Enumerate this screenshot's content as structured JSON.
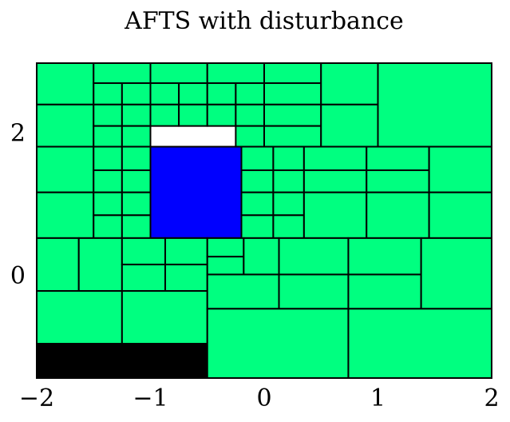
{
  "chart_data": {
    "type": "partition",
    "title": "AFTS with disturbance",
    "xlim": [
      -2,
      2
    ],
    "ylim": [
      -1.41,
      3
    ],
    "xticks": [
      {
        "value": -2,
        "label": "−2"
      },
      {
        "value": -1,
        "label": "−1"
      },
      0,
      1,
      2
    ],
    "yticks": [
      0,
      2
    ],
    "cells": [
      {
        "x": [
          -2,
          -1.5
        ],
        "y": [
          2.42,
          3
        ],
        "color": "#00ff80"
      },
      {
        "x": [
          -2,
          -1.5
        ],
        "y": [
          1.83,
          2.42
        ],
        "color": "#00ff80"
      },
      {
        "x": [
          -1.5,
          -1
        ],
        "y": [
          2.72,
          3
        ],
        "color": "#00ff80"
      },
      {
        "x": [
          -1,
          -0.5
        ],
        "y": [
          2.72,
          3
        ],
        "color": "#00ff80"
      },
      {
        "x": [
          -1.5,
          -1.25
        ],
        "y": [
          2.42,
          2.72
        ],
        "color": "#00ff80"
      },
      {
        "x": [
          -1.25,
          -1
        ],
        "y": [
          2.42,
          2.72
        ],
        "color": "#00ff80"
      },
      {
        "x": [
          -1,
          -0.75
        ],
        "y": [
          2.42,
          2.72
        ],
        "color": "#00ff80"
      },
      {
        "x": [
          -0.75,
          -0.5
        ],
        "y": [
          2.42,
          2.72
        ],
        "color": "#00ff80"
      },
      {
        "x": [
          -1.5,
          -1.25
        ],
        "y": [
          2.12,
          2.42
        ],
        "color": "#00ff80"
      },
      {
        "x": [
          -1.25,
          -1
        ],
        "y": [
          2.12,
          2.42
        ],
        "color": "#00ff80"
      },
      {
        "x": [
          -1,
          -0.75
        ],
        "y": [
          2.12,
          2.42
        ],
        "color": "#00ff80"
      },
      {
        "x": [
          -0.75,
          -0.5
        ],
        "y": [
          2.12,
          2.42
        ],
        "color": "#00ff80"
      },
      {
        "x": [
          -1.5,
          -1.25
        ],
        "y": [
          1.83,
          2.12
        ],
        "color": "#00ff80"
      },
      {
        "x": [
          -1.25,
          -1
        ],
        "y": [
          1.83,
          2.12
        ],
        "color": "#00ff80"
      },
      {
        "x": [
          -0.5,
          0
        ],
        "y": [
          2.72,
          3
        ],
        "color": "#00ff80"
      },
      {
        "x": [
          -0.5,
          -0.25
        ],
        "y": [
          2.42,
          2.72
        ],
        "color": "#00ff80"
      },
      {
        "x": [
          -0.25,
          0
        ],
        "y": [
          2.42,
          2.72
        ],
        "color": "#00ff80"
      },
      {
        "x": [
          -0.5,
          -0.25
        ],
        "y": [
          2.12,
          2.42
        ],
        "color": "#00ff80"
      },
      {
        "x": [
          -0.25,
          0
        ],
        "y": [
          2.12,
          2.42
        ],
        "color": "#00ff80"
      },
      {
        "x": [
          -0.25,
          0
        ],
        "y": [
          1.83,
          2.12
        ],
        "color": "#00ff80"
      },
      {
        "x": [
          0,
          0.5
        ],
        "y": [
          2.72,
          3
        ],
        "color": "#00ff80"
      },
      {
        "x": [
          0,
          0.5
        ],
        "y": [
          2.42,
          2.72
        ],
        "color": "#00ff80"
      },
      {
        "x": [
          0,
          0.5
        ],
        "y": [
          2.12,
          2.42
        ],
        "color": "#00ff80"
      },
      {
        "x": [
          0,
          0.5
        ],
        "y": [
          1.83,
          2.12
        ],
        "color": "#00ff80"
      },
      {
        "x": [
          0.5,
          1
        ],
        "y": [
          2.42,
          3
        ],
        "color": "#00ff80"
      },
      {
        "x": [
          0.5,
          1
        ],
        "y": [
          1.83,
          2.42
        ],
        "color": "#00ff80"
      },
      {
        "x": [
          1,
          2
        ],
        "y": [
          1.83,
          3
        ],
        "color": "#00ff80"
      },
      {
        "x": [
          -2,
          -1.5
        ],
        "y": [
          1.19,
          1.83
        ],
        "color": "#00ff80"
      },
      {
        "x": [
          -2,
          -1.5
        ],
        "y": [
          0.55,
          1.19
        ],
        "color": "#00ff80"
      },
      {
        "x": [
          -1.5,
          -1.25
        ],
        "y": [
          1.5,
          1.83
        ],
        "color": "#00ff80"
      },
      {
        "x": [
          -1.25,
          -1
        ],
        "y": [
          1.5,
          1.83
        ],
        "color": "#00ff80"
      },
      {
        "x": [
          -1.5,
          -1.25
        ],
        "y": [
          1.19,
          1.5
        ],
        "color": "#00ff80"
      },
      {
        "x": [
          -1.25,
          -1
        ],
        "y": [
          1.19,
          1.5
        ],
        "color": "#00ff80"
      },
      {
        "x": [
          -1.5,
          -1.25
        ],
        "y": [
          0.87,
          1.19
        ],
        "color": "#00ff80"
      },
      {
        "x": [
          -1.25,
          -1
        ],
        "y": [
          0.87,
          1.19
        ],
        "color": "#00ff80"
      },
      {
        "x": [
          -1.5,
          -1.25
        ],
        "y": [
          0.55,
          0.87
        ],
        "color": "#00ff80"
      },
      {
        "x": [
          -1.25,
          -1
        ],
        "y": [
          0.55,
          0.87
        ],
        "color": "#00ff80"
      },
      {
        "x": [
          -1,
          -0.2
        ],
        "y": [
          0.55,
          1.83
        ],
        "color": "#0000ff"
      },
      {
        "x": [
          -0.2,
          0.08
        ],
        "y": [
          1.5,
          1.83
        ],
        "color": "#00ff80"
      },
      {
        "x": [
          0.08,
          0.35
        ],
        "y": [
          1.5,
          1.83
        ],
        "color": "#00ff80"
      },
      {
        "x": [
          -0.2,
          0.08
        ],
        "y": [
          1.19,
          1.5
        ],
        "color": "#00ff80"
      },
      {
        "x": [
          0.08,
          0.35
        ],
        "y": [
          1.19,
          1.5
        ],
        "color": "#00ff80"
      },
      {
        "x": [
          -0.2,
          0.08
        ],
        "y": [
          0.87,
          1.19
        ],
        "color": "#00ff80"
      },
      {
        "x": [
          0.08,
          0.35
        ],
        "y": [
          0.87,
          1.19
        ],
        "color": "#00ff80"
      },
      {
        "x": [
          -0.2,
          0.08
        ],
        "y": [
          0.55,
          0.87
        ],
        "color": "#00ff80"
      },
      {
        "x": [
          0.08,
          0.35
        ],
        "y": [
          0.55,
          0.87
        ],
        "color": "#00ff80"
      },
      {
        "x": [
          0.35,
          0.9
        ],
        "y": [
          1.5,
          1.83
        ],
        "color": "#00ff80"
      },
      {
        "x": [
          0.35,
          0.9
        ],
        "y": [
          1.19,
          1.5
        ],
        "color": "#00ff80"
      },
      {
        "x": [
          0.35,
          0.9
        ],
        "y": [
          0.55,
          1.19
        ],
        "color": "#00ff80"
      },
      {
        "x": [
          0.9,
          1.45
        ],
        "y": [
          1.5,
          1.83
        ],
        "color": "#00ff80"
      },
      {
        "x": [
          0.9,
          1.45
        ],
        "y": [
          1.19,
          1.5
        ],
        "color": "#00ff80"
      },
      {
        "x": [
          0.9,
          1.45
        ],
        "y": [
          0.55,
          1.19
        ],
        "color": "#00ff80"
      },
      {
        "x": [
          1.45,
          2
        ],
        "y": [
          1.19,
          1.83
        ],
        "color": "#00ff80"
      },
      {
        "x": [
          1.45,
          2
        ],
        "y": [
          0.55,
          1.19
        ],
        "color": "#00ff80"
      },
      {
        "x": [
          -2,
          -1.63
        ],
        "y": [
          -0.19,
          0.55
        ],
        "color": "#00ff80"
      },
      {
        "x": [
          -1.63,
          -1.25
        ],
        "y": [
          -0.19,
          0.55
        ],
        "color": "#00ff80"
      },
      {
        "x": [
          -1.25,
          -0.87
        ],
        "y": [
          0.18,
          0.55
        ],
        "color": "#00ff80"
      },
      {
        "x": [
          -0.87,
          -0.5
        ],
        "y": [
          0.18,
          0.55
        ],
        "color": "#00ff80"
      },
      {
        "x": [
          -1.25,
          -0.87
        ],
        "y": [
          -0.19,
          0.18
        ],
        "color": "#00ff80"
      },
      {
        "x": [
          -0.87,
          -0.5
        ],
        "y": [
          -0.19,
          0.18
        ],
        "color": "#00ff80"
      },
      {
        "x": [
          -2,
          -1.25
        ],
        "y": [
          -0.93,
          -0.19
        ],
        "color": "#00ff80"
      },
      {
        "x": [
          -1.25,
          -0.5
        ],
        "y": [
          -0.93,
          -0.19
        ],
        "color": "#00ff80"
      },
      {
        "x": [
          -2,
          -0.5
        ],
        "y": [
          -1.41,
          -0.93
        ],
        "color": "#000000"
      },
      {
        "x": [
          -0.5,
          -0.18
        ],
        "y": [
          0.29,
          0.55
        ],
        "color": "#00ff80"
      },
      {
        "x": [
          -0.5,
          -0.18
        ],
        "y": [
          0.04,
          0.29
        ],
        "color": "#00ff80"
      },
      {
        "x": [
          -0.18,
          0.13
        ],
        "y": [
          0.04,
          0.55
        ],
        "color": "#00ff80"
      },
      {
        "x": [
          -0.5,
          0.13
        ],
        "y": [
          -0.44,
          0.04
        ],
        "color": "#00ff80"
      },
      {
        "x": [
          0.13,
          0.74
        ],
        "y": [
          0.04,
          0.55
        ],
        "color": "#00ff80"
      },
      {
        "x": [
          0.13,
          0.74
        ],
        "y": [
          -0.44,
          0.04
        ],
        "color": "#00ff80"
      },
      {
        "x": [
          0.74,
          1.38
        ],
        "y": [
          0.04,
          0.55
        ],
        "color": "#00ff80"
      },
      {
        "x": [
          0.74,
          1.38
        ],
        "y": [
          -0.44,
          0.04
        ],
        "color": "#00ff80"
      },
      {
        "x": [
          1.38,
          2
        ],
        "y": [
          -0.44,
          0.55
        ],
        "color": "#00ff80"
      },
      {
        "x": [
          -0.5,
          0.74
        ],
        "y": [
          -1.41,
          -0.44
        ],
        "color": "#00ff80"
      },
      {
        "x": [
          0.74,
          2
        ],
        "y": [
          -1.41,
          -0.44
        ],
        "color": "#00ff80"
      }
    ]
  }
}
